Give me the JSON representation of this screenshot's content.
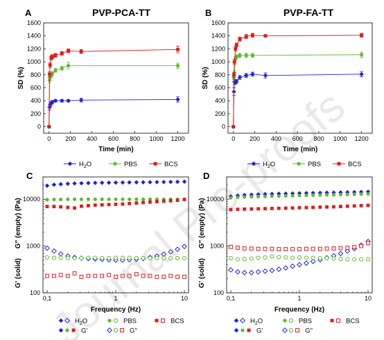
{
  "figure": {
    "watermark": "Journal Pre-proofs"
  },
  "chart_data": [
    {
      "panel": "A",
      "title": "PVP-PCA-TT",
      "type": "line",
      "xlabel": "Time (min)",
      "ylabel": "SD (%)",
      "xlim": [
        -50,
        1300
      ],
      "ylim": [
        -100,
        1600
      ],
      "xticks": [
        0,
        200,
        400,
        600,
        800,
        1000,
        1200
      ],
      "yticks": [
        0,
        200,
        400,
        600,
        800,
        1000,
        1200,
        1400,
        1600
      ],
      "grid": false,
      "legend_position": "below",
      "series": [
        {
          "name": "H2O",
          "color": "#1f1fe0",
          "marker": "diamond",
          "x": [
            0,
            5,
            10,
            20,
            30,
            60,
            120,
            180,
            300,
            1200
          ],
          "y": [
            0,
            300,
            340,
            360,
            380,
            400,
            400,
            400,
            410,
            420
          ],
          "err": [
            0,
            40,
            30,
            30,
            25,
            20,
            20,
            20,
            30,
            40
          ]
        },
        {
          "name": "PBS",
          "color": "#5fb830",
          "marker": "circle",
          "x": [
            0,
            5,
            10,
            20,
            30,
            60,
            120,
            180,
            1200
          ],
          "y": [
            0,
            720,
            760,
            790,
            820,
            870,
            900,
            940,
            940
          ],
          "err": [
            0,
            40,
            40,
            30,
            30,
            30,
            30,
            50,
            40
          ]
        },
        {
          "name": "BCS",
          "color": "#e01b1b",
          "marker": "square",
          "x": [
            0,
            5,
            10,
            20,
            30,
            60,
            120,
            180,
            300,
            1200
          ],
          "y": [
            0,
            810,
            950,
            1060,
            1080,
            1100,
            1130,
            1170,
            1160,
            1190
          ],
          "err": [
            0,
            40,
            40,
            30,
            30,
            30,
            30,
            30,
            30,
            50
          ]
        }
      ]
    },
    {
      "panel": "B",
      "title": "PVP-FA-TT",
      "type": "line",
      "xlabel": "Time (min)",
      "ylabel": "SD (%)",
      "xlim": [
        -50,
        1300
      ],
      "ylim": [
        -100,
        1600
      ],
      "xticks": [
        0,
        200,
        400,
        600,
        800,
        1000,
        1200
      ],
      "yticks": [
        0,
        200,
        400,
        600,
        800,
        1000,
        1200,
        1400,
        1600
      ],
      "grid": false,
      "legend_position": "below",
      "series": [
        {
          "name": "H2O",
          "color": "#1f1fe0",
          "marker": "diamond",
          "x": [
            0,
            5,
            10,
            20,
            30,
            60,
            120,
            180,
            300,
            1200
          ],
          "y": [
            0,
            540,
            690,
            690,
            700,
            760,
            790,
            810,
            790,
            810
          ],
          "err": [
            0,
            60,
            40,
            30,
            30,
            30,
            30,
            30,
            40,
            40
          ]
        },
        {
          "name": "PBS",
          "color": "#5fb830",
          "marker": "circle",
          "x": [
            0,
            5,
            10,
            20,
            30,
            60,
            120,
            180,
            1200
          ],
          "y": [
            0,
            760,
            830,
            1050,
            1080,
            1100,
            1100,
            1100,
            1110
          ],
          "err": [
            0,
            40,
            40,
            30,
            30,
            30,
            30,
            30,
            40
          ]
        },
        {
          "name": "BCS",
          "color": "#e01b1b",
          "marker": "square",
          "x": [
            0,
            5,
            10,
            20,
            30,
            60,
            120,
            180,
            300,
            1200
          ],
          "y": [
            0,
            800,
            1000,
            1200,
            1260,
            1350,
            1390,
            1410,
            1400,
            1410
          ],
          "err": [
            0,
            40,
            40,
            40,
            30,
            30,
            30,
            30,
            20,
            30
          ]
        }
      ]
    },
    {
      "panel": "C",
      "type": "scatter",
      "xlabel": "Frequency (Hz)",
      "ylabel_top": "G'' (empty) (Pa)",
      "ylabel_bottom": "G' (solid)",
      "xscale": "log",
      "yscale": "log",
      "xlim": [
        0.1,
        10
      ],
      "ylim": [
        100,
        30000
      ],
      "xticks": [
        "0,1",
        "1",
        "10"
      ],
      "yticks": [
        "100",
        "1000",
        "10000"
      ],
      "grid": false,
      "legend_position": "below",
      "x": [
        0.1,
        0.126,
        0.158,
        0.2,
        0.251,
        0.316,
        0.398,
        0.501,
        0.631,
        0.794,
        1.0,
        1.26,
        1.58,
        2.0,
        2.51,
        3.16,
        3.98,
        5.01,
        6.31,
        7.94,
        10.0
      ],
      "series": [
        {
          "name": "H2O G'",
          "color": "#1f1fe0",
          "marker": "diamond",
          "filled": true,
          "y": [
            19500,
            20500,
            21000,
            21500,
            21800,
            22000,
            22200,
            22400,
            22500,
            22600,
            22700,
            22800,
            22900,
            23000,
            23100,
            23200,
            23300,
            23400,
            23500,
            23600,
            23800
          ]
        },
        {
          "name": "PBS G'",
          "color": "#5fb830",
          "marker": "circle",
          "filled": true,
          "y": [
            9800,
            9900,
            9900,
            10000,
            10000,
            10000,
            10000,
            10000,
            10000,
            10000,
            10000,
            10000,
            10000,
            10000,
            10000,
            10000,
            10000,
            10000,
            10000,
            10000,
            10000
          ]
        },
        {
          "name": "BCS G'",
          "color": "#e01b1b",
          "marker": "square",
          "filled": true,
          "y": [
            7000,
            7000,
            6900,
            6700,
            6500,
            7100,
            7300,
            7500,
            7600,
            7700,
            7800,
            7900,
            8100,
            8300,
            8500,
            8700,
            8900,
            9100,
            9300,
            9500,
            9900
          ]
        },
        {
          "name": "H2O G''",
          "color": "#1f1fe0",
          "marker": "diamond",
          "filled": false,
          "y": [
            900,
            780,
            680,
            610,
            570,
            550,
            540,
            530,
            520,
            510,
            500,
            500,
            510,
            520,
            540,
            570,
            610,
            670,
            750,
            850,
            980
          ]
        },
        {
          "name": "PBS G''",
          "color": "#5fb830",
          "marker": "circle",
          "filled": false,
          "y": [
            570,
            560,
            560,
            550,
            550,
            550,
            560,
            560,
            550,
            550,
            560,
            560,
            560,
            550,
            550,
            550,
            550,
            550,
            550,
            550,
            550
          ]
        },
        {
          "name": "BCS G''",
          "color": "#e01b1b",
          "marker": "square",
          "filled": false,
          "y": [
            230,
            230,
            240,
            230,
            260,
            220,
            230,
            230,
            230,
            240,
            220,
            230,
            230,
            250,
            230,
            230,
            220,
            220,
            230,
            220,
            220
          ]
        }
      ]
    },
    {
      "panel": "D",
      "type": "scatter",
      "xlabel": "Frequency (Hz)",
      "ylabel_top": "G'' (empty) (Pa)",
      "ylabel_bottom": "G' (solid)",
      "xscale": "log",
      "yscale": "log",
      "xlim": [
        0.1,
        10
      ],
      "ylim": [
        100,
        30000
      ],
      "xticks": [
        "0,1",
        "1",
        "10"
      ],
      "yticks": [
        "100",
        "1000",
        "10000"
      ],
      "grid": false,
      "legend_position": "below",
      "x": [
        0.1,
        0.126,
        0.158,
        0.2,
        0.251,
        0.316,
        0.398,
        0.501,
        0.631,
        0.794,
        1.0,
        1.26,
        1.58,
        2.0,
        2.51,
        3.16,
        3.98,
        5.01,
        6.31,
        7.94,
        10.0
      ],
      "series": [
        {
          "name": "H2O G'",
          "color": "#1f1fe0",
          "marker": "diamond",
          "filled": true,
          "y": [
            11500,
            12000,
            12300,
            12500,
            12700,
            12900,
            13000,
            13100,
            13200,
            13300,
            13400,
            13500,
            13600,
            13700,
            13800,
            13900,
            14000,
            14100,
            14200,
            14300,
            14500
          ]
        },
        {
          "name": "PBS G'",
          "color": "#5fb830",
          "marker": "circle",
          "filled": true,
          "y": [
            10800,
            11000,
            11200,
            11300,
            11400,
            11500,
            11600,
            11700,
            11800,
            11900,
            12000,
            12100,
            12200,
            12300,
            12400,
            12500,
            12600,
            12700,
            12800,
            12900,
            13000
          ]
        },
        {
          "name": "BCS G'",
          "color": "#e01b1b",
          "marker": "square",
          "filled": true,
          "y": [
            6000,
            6100,
            6150,
            6200,
            6250,
            6300,
            6350,
            6400,
            6450,
            6500,
            6600,
            6650,
            6700,
            6800,
            6850,
            6900,
            7000,
            7100,
            7200,
            7300,
            7400
          ]
        },
        {
          "name": "H2O G''",
          "color": "#1f1fe0",
          "marker": "diamond",
          "filled": false,
          "y": [
            310,
            280,
            270,
            270,
            280,
            290,
            300,
            320,
            340,
            370,
            400,
            430,
            470,
            510,
            560,
            620,
            690,
            780,
            880,
            1050,
            1250
          ]
        },
        {
          "name": "PBS G''",
          "color": "#5fb830",
          "marker": "circle",
          "filled": false,
          "y": [
            550,
            520,
            530,
            540,
            560,
            570,
            600,
            580,
            570,
            560,
            570,
            560,
            560,
            550,
            550,
            540,
            530,
            520,
            520,
            520,
            520
          ]
        },
        {
          "name": "BCS G''",
          "color": "#e01b1b",
          "marker": "square",
          "filled": false,
          "y": [
            960,
            920,
            890,
            880,
            870,
            870,
            870,
            860,
            860,
            860,
            860,
            870,
            870,
            870,
            880,
            890,
            900,
            920,
            950,
            1000,
            1150
          ]
        }
      ]
    }
  ],
  "legends": {
    "top": {
      "entries": [
        {
          "label": "H",
          "sub": "2",
          "tail": "O",
          "color": "#1f1fe0",
          "marker": "diamond"
        },
        {
          "label": "PBS",
          "sub": "",
          "tail": "",
          "color": "#5fb830",
          "marker": "circle"
        },
        {
          "label": "BCS",
          "sub": "",
          "tail": "",
          "color": "#e01b1b",
          "marker": "square"
        }
      ]
    },
    "bottom": {
      "row1": [
        {
          "label": "H",
          "sub": "2",
          "tail": "O",
          "color": "#1f1fe0",
          "marker": "diamond"
        },
        {
          "label": "PBS",
          "sub": "",
          "tail": "",
          "color": "#5fb830",
          "marker": "circle"
        },
        {
          "label": "BCS",
          "sub": "",
          "tail": "",
          "color": "#e01b1b",
          "marker": "square"
        }
      ],
      "row2": [
        {
          "label": "G'",
          "filled": true
        },
        {
          "label": "G''",
          "filled": false
        }
      ]
    }
  }
}
